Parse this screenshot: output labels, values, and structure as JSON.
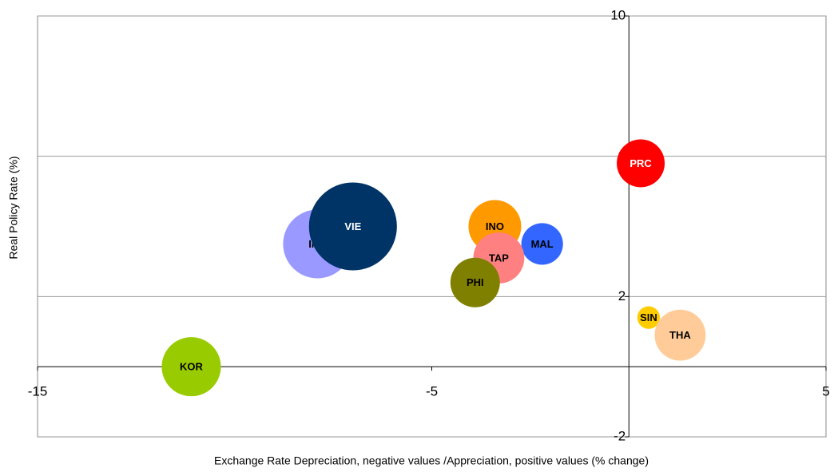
{
  "chart_data": {
    "type": "bubble",
    "xlabel": "Exchange Rate Depreciation, negative values /Appreciation, positive values (% change)",
    "ylabel": "Real Policy Rate (%)",
    "labels": [
      "KOR",
      "IND",
      "VIE",
      "INO",
      "MAL",
      "TAP",
      "PHI",
      "PRC",
      "SIN",
      "THA"
    ],
    "x": [
      -11.1,
      -7.9,
      -7.0,
      -3.4,
      -2.2,
      -3.3,
      -3.9,
      0.3,
      0.5,
      1.3
    ],
    "y": [
      0.0,
      3.5,
      4.0,
      4.0,
      3.5,
      3.1,
      2.4,
      5.8,
      1.4,
      0.9
    ],
    "sizes": [
      13.7,
      18.5,
      30.3,
      10.9,
      6.8,
      10.2,
      9.6,
      9.0,
      2.0,
      10.2
    ],
    "colors": [
      "#99cc00",
      "#9999ff",
      "#003366",
      "#ff9900",
      "#3366ff",
      "#ff8080",
      "#808000",
      "#ff0000",
      "#ffcc00",
      "#ffcc99"
    ],
    "xlim": [
      -15,
      5
    ],
    "xticks": [
      -15,
      -5,
      5
    ],
    "ylim": [
      -2,
      10
    ],
    "yticks": [
      -2,
      2,
      6,
      10
    ],
    "grid": true
  }
}
